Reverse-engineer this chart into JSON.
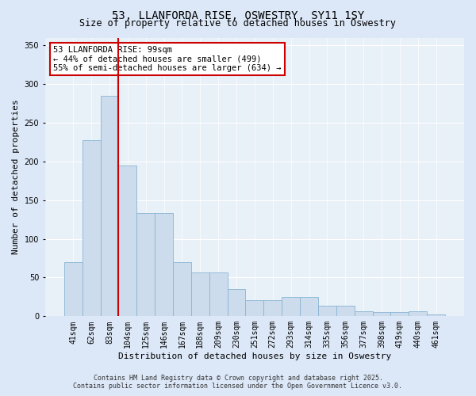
{
  "title_line1": "53, LLANFORDA RISE, OSWESTRY, SY11 1SY",
  "title_line2": "Size of property relative to detached houses in Oswestry",
  "xlabel": "Distribution of detached houses by size in Oswestry",
  "ylabel": "Number of detached properties",
  "categories": [
    "41sqm",
    "62sqm",
    "83sqm",
    "104sqm",
    "125sqm",
    "146sqm",
    "167sqm",
    "188sqm",
    "209sqm",
    "230sqm",
    "251sqm",
    "272sqm",
    "293sqm",
    "314sqm",
    "335sqm",
    "356sqm",
    "377sqm",
    "398sqm",
    "419sqm",
    "440sqm",
    "461sqm"
  ],
  "values": [
    70,
    228,
    285,
    195,
    133,
    133,
    70,
    57,
    57,
    35,
    21,
    21,
    25,
    25,
    14,
    14,
    6,
    5,
    5,
    6,
    2
  ],
  "bar_color": "#ccdcec",
  "bar_edge_color": "#8ab4d4",
  "vline_color": "#cc0000",
  "annotation_text": "53 LLANFORDA RISE: 99sqm\n← 44% of detached houses are smaller (499)\n55% of semi-detached houses are larger (634) →",
  "annotation_box_color": "#ffffff",
  "annotation_box_edge": "#cc0000",
  "ylim": [
    0,
    360
  ],
  "yticks": [
    0,
    50,
    100,
    150,
    200,
    250,
    300,
    350
  ],
  "footer_text": "Contains HM Land Registry data © Crown copyright and database right 2025.\nContains public sector information licensed under the Open Government Licence v3.0.",
  "bg_color": "#dce8f8",
  "plot_bg_color": "#e8f0f8",
  "title_fontsize": 10,
  "subtitle_fontsize": 8.5,
  "tick_fontsize": 7,
  "ylabel_fontsize": 8,
  "xlabel_fontsize": 8
}
